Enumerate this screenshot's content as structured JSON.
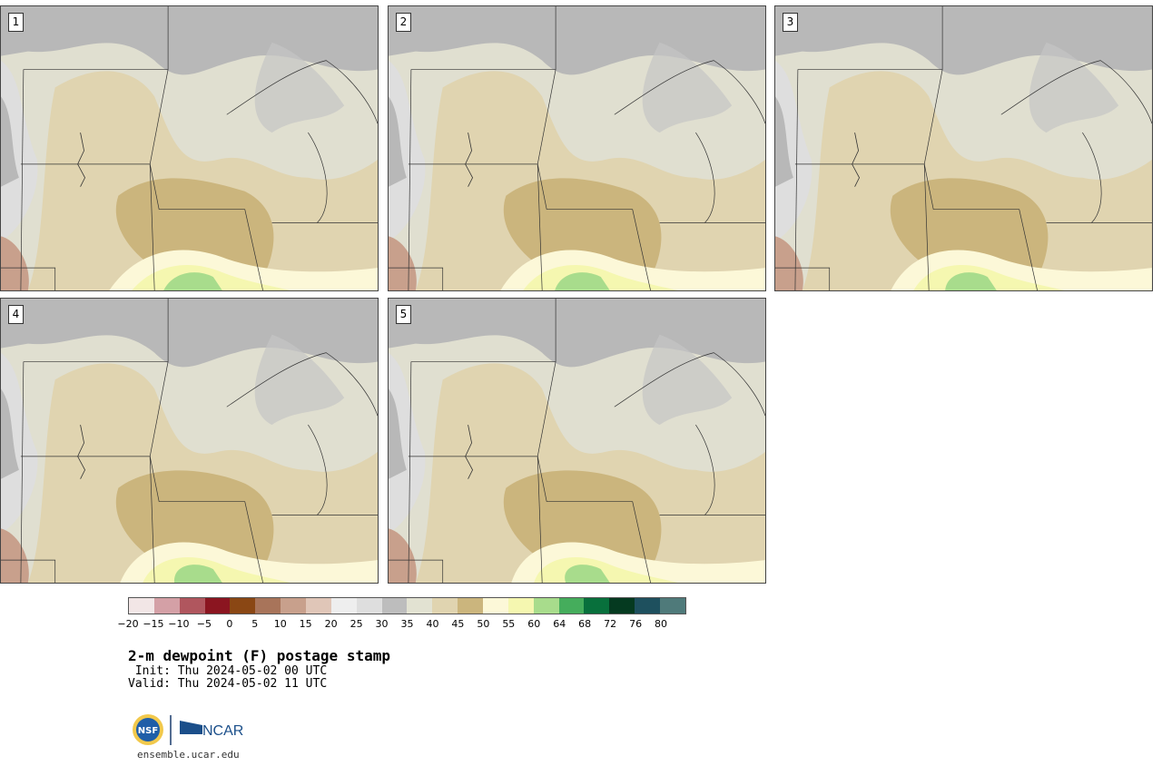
{
  "panels": [
    {
      "label": "1"
    },
    {
      "label": "2"
    },
    {
      "label": "3"
    },
    {
      "label": "4"
    },
    {
      "label": "5"
    }
  ],
  "colorbar": {
    "colors": [
      "#f2e6e6",
      "#d4a0a6",
      "#b0565e",
      "#8b1520",
      "#8a4714",
      "#a8745a",
      "#c8a08c",
      "#e0c6b8",
      "#eeeeee",
      "#dedede",
      "#bdbdbd",
      "#e2e2d2",
      "#e0d4b0",
      "#cbb57d",
      "#fcf8d8",
      "#f5f7b0",
      "#a8dc8c",
      "#45ad5c",
      "#08703c",
      "#053a20",
      "#1e505e",
      "#4f7a7a"
    ],
    "ticks": [
      "−20",
      "−15",
      "−10",
      "−5",
      "0",
      "5",
      "10",
      "15",
      "20",
      "25",
      "30",
      "35",
      "40",
      "45",
      "50",
      "55",
      "60",
      "64",
      "68",
      "72",
      "76",
      "80"
    ]
  },
  "title": "2-m dewpoint (F) postage stamp",
  "init_line": " Init: Thu 2024-05-02 00 UTC",
  "valid_line": "Valid: Thu 2024-05-02 11 UTC",
  "logos": {
    "nsf": "NSF",
    "ncar": "NCAR"
  },
  "site": "ensemble.ucar.edu",
  "map_colors": {
    "base": "#e0dfd0",
    "gray_dark": "#b8b8b8",
    "gray_light": "#dedede",
    "tan": "#e0d4b0",
    "tan_dark": "#cbb57d",
    "yellow_light": "#fcf8d8",
    "yellow": "#f5f7b0",
    "green": "#a8dc8c",
    "brown": "#c8a08c"
  }
}
